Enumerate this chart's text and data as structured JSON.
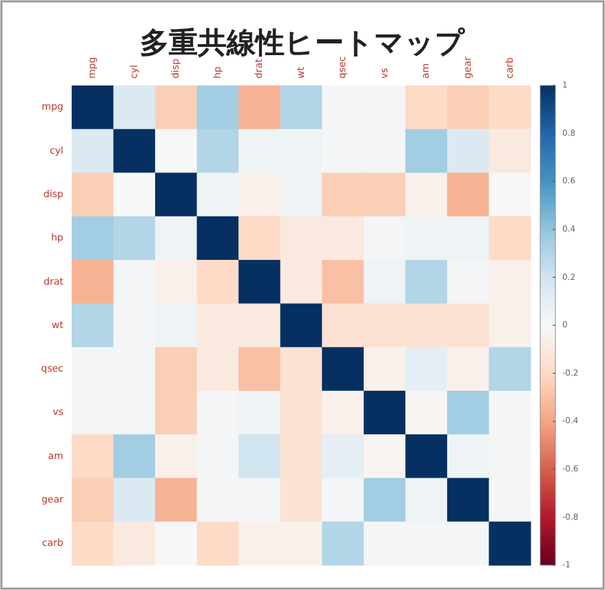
{
  "chart_data": {
    "type": "heatmap",
    "title": "多重共線性ヒートマップ",
    "categories": [
      "mpg",
      "cyl",
      "disp",
      "hp",
      "drat",
      "wt",
      "qsec",
      "vs",
      "am",
      "gear",
      "carb"
    ],
    "y_categories": [
      "mpg",
      "cyl",
      "disp",
      "hp",
      "drat",
      "wt",
      "qsec",
      "vs",
      "am",
      "gear",
      "carb"
    ],
    "cells": [
      [
        1,
        0.15,
        -0.25,
        0.35,
        -0.35,
        0.3,
        0.02,
        0.02,
        -0.2,
        -0.25,
        -0.2
      ],
      [
        0.15,
        1,
        0.0,
        0.3,
        0.05,
        0.05,
        0.02,
        0.02,
        0.35,
        0.15,
        -0.1
      ],
      [
        -0.25,
        0.0,
        1,
        0.05,
        -0.05,
        0.05,
        -0.25,
        -0.25,
        -0.05,
        -0.35,
        0.0
      ],
      [
        0.35,
        0.3,
        0.05,
        1,
        -0.2,
        -0.1,
        -0.1,
        0.02,
        0.05,
        0.05,
        -0.2
      ],
      [
        -0.35,
        0.02,
        -0.05,
        -0.2,
        1,
        -0.1,
        -0.3,
        0.05,
        0.3,
        0.02,
        -0.05
      ],
      [
        0.3,
        0.02,
        0.05,
        -0.1,
        -0.1,
        1,
        -0.15,
        -0.15,
        -0.15,
        -0.15,
        -0.05
      ],
      [
        0.02,
        0.02,
        -0.25,
        -0.1,
        -0.3,
        -0.15,
        1,
        -0.05,
        0.1,
        -0.05,
        0.3
      ],
      [
        0.02,
        0.02,
        -0.25,
        0.02,
        0.05,
        -0.15,
        -0.05,
        1,
        -0.02,
        0.35,
        0.02
      ],
      [
        -0.2,
        0.35,
        -0.05,
        0.02,
        0.2,
        -0.15,
        0.1,
        -0.02,
        1,
        0.05,
        0.02
      ],
      [
        -0.25,
        0.15,
        -0.35,
        0.02,
        0.02,
        -0.15,
        0.02,
        0.35,
        0.05,
        1,
        0.02
      ],
      [
        -0.2,
        -0.1,
        0.0,
        -0.2,
        -0.05,
        -0.05,
        0.3,
        0.02,
        0.02,
        0.02,
        1
      ]
    ],
    "clim": [
      -1,
      1
    ],
    "cticks": [
      1,
      0.8,
      0.6,
      0.4,
      0.2,
      0,
      -0.2,
      -0.4,
      -0.6,
      -0.8,
      -1
    ]
  }
}
